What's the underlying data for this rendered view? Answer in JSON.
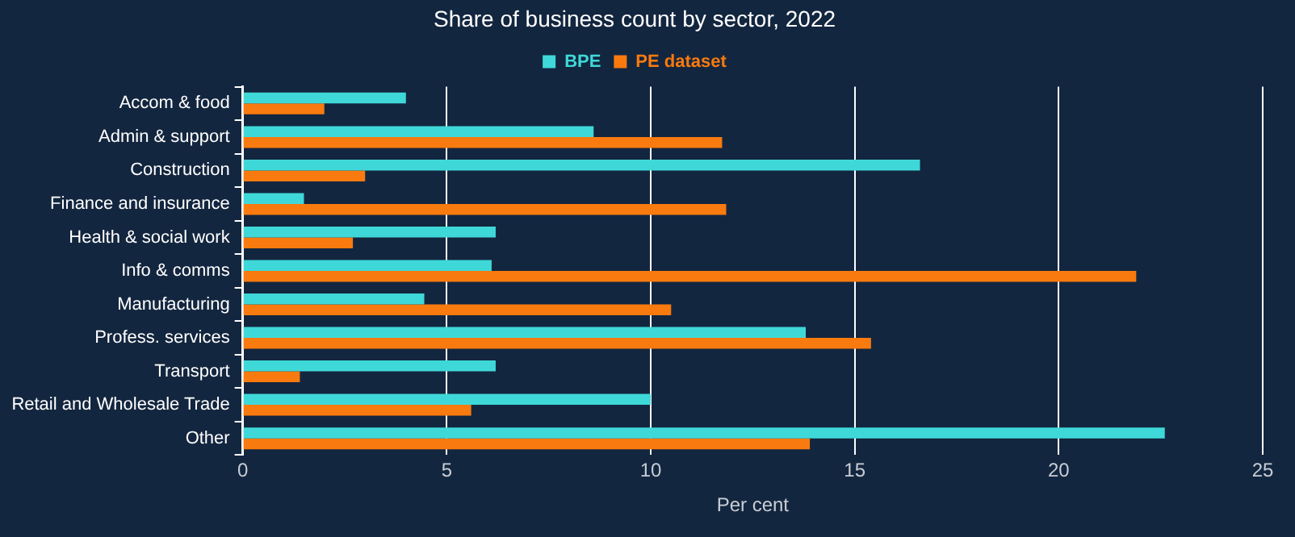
{
  "chart_data": {
    "type": "bar",
    "orientation": "horizontal",
    "title": "Share of business count by sector, 2022",
    "xlabel": "Per cent",
    "categories": [
      "Accom & food",
      "Admin & support",
      "Construction",
      "Finance and insurance",
      "Health & social work",
      "Info & comms",
      "Manufacturing",
      "Profess. services",
      "Transport",
      "Retail and Wholesale Trade",
      "Other"
    ],
    "series": [
      {
        "name": "BPE",
        "color": "#3fd8d8",
        "values": [
          4.0,
          8.6,
          16.6,
          1.5,
          6.2,
          6.1,
          4.45,
          13.8,
          6.2,
          10.0,
          22.6
        ]
      },
      {
        "name": "PE dataset",
        "color": "#f97a0e",
        "values": [
          2.0,
          11.75,
          3.0,
          11.85,
          2.7,
          21.9,
          10.5,
          15.4,
          1.4,
          5.6,
          13.9
        ]
      }
    ],
    "xlim": [
      0,
      25
    ],
    "xticks": [
      0,
      5,
      10,
      15,
      20,
      25
    ],
    "grid": "x",
    "legend": "top"
  }
}
